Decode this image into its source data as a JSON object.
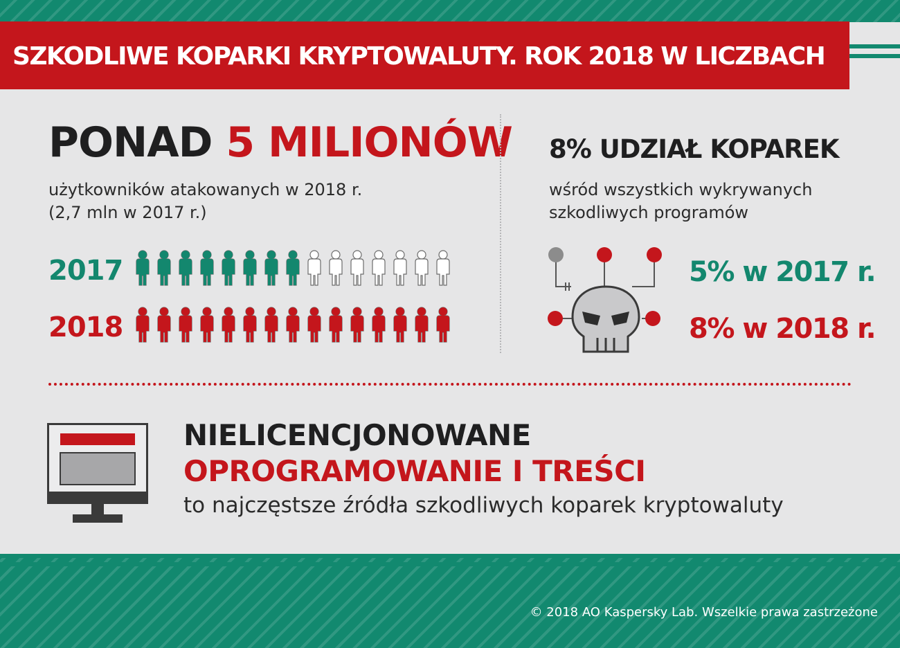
{
  "header": {
    "title": "SZKODLIWE KOPARKI KRYPTOWALUTY. ROK 2018 W LICZBACH"
  },
  "users": {
    "headline_prefix": "PONAD",
    "headline_highlight": "5 MILIONÓW",
    "subtitle_line1": "użytkowników atakowanych w 2018 r.",
    "subtitle_line2": "(2,7 mln w 2017 r.)",
    "rows": [
      {
        "year": "2017",
        "filled_fraction": 0.54,
        "total_icons": 15,
        "color": "#13876e"
      },
      {
        "year": "2018",
        "filled_fraction": 1.0,
        "total_icons": 15,
        "color": "#c4161c"
      }
    ]
  },
  "share": {
    "title": "8% UDZIAŁ KOPAREK",
    "subtitle_line1": "wśród wszystkich wykrywanych",
    "subtitle_line2": "szkodliwych programów",
    "stat_2017": "5% w 2017 r.",
    "stat_2018": "8% w 2018 r.",
    "icon": "skull-circuit-icon"
  },
  "sources": {
    "line1": "NIELICENCJONOWANE",
    "line2": "OPROGRAMOWANIE I TREŚCI",
    "line3": "to najczęstsze źródła szkodliwych koparek kryptowaluty",
    "icon": "monitor-icon"
  },
  "footer": {
    "copyright": "© 2018 AO Kaspersky Lab. Wszelkie prawa zastrzeżone"
  },
  "colors": {
    "red": "#c4161c",
    "green": "#13876e",
    "panel": "#e6e6e7",
    "dark": "#1f1f20"
  }
}
